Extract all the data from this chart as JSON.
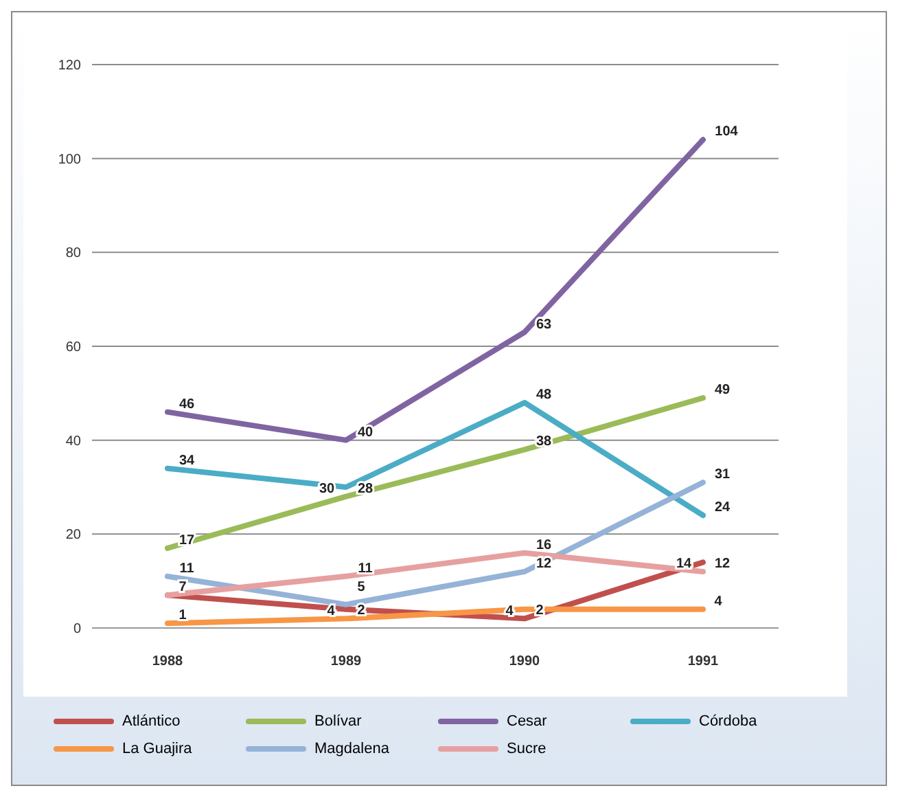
{
  "chart_data": {
    "type": "line",
    "categories": [
      "1988",
      "1989",
      "1990",
      "1991"
    ],
    "series": [
      {
        "name": "Atlántico",
        "color": "#c0504d",
        "values": [
          7,
          4,
          2,
          14
        ],
        "value_labels": [
          "7",
          "4",
          "2",
          "14"
        ]
      },
      {
        "name": "Bolívar",
        "color": "#9bbb59",
        "values": [
          17,
          28,
          38,
          49
        ],
        "value_labels": [
          "17",
          "28",
          "38",
          "49"
        ]
      },
      {
        "name": "Cesar",
        "color": "#8064a2",
        "values": [
          46,
          40,
          63,
          104
        ],
        "value_labels": [
          "46",
          "40",
          "63",
          "104"
        ]
      },
      {
        "name": "Córdoba",
        "color": "#4bacc6",
        "values": [
          34,
          30,
          48,
          24
        ],
        "value_labels": [
          "34",
          "30",
          "48",
          "24"
        ]
      },
      {
        "name": "La Guajira",
        "color": "#f79646",
        "values": [
          1,
          2,
          4,
          4
        ],
        "value_labels": [
          "1",
          "2",
          "4",
          "4"
        ]
      },
      {
        "name": "Magdalena",
        "color": "#95b3d7",
        "values": [
          11,
          5,
          12,
          31
        ],
        "value_labels": [
          "11",
          "5",
          "12",
          "31"
        ]
      },
      {
        "name": "Sucre",
        "color": "#e6a0a0",
        "values": [
          7,
          11,
          16,
          12
        ],
        "value_labels": [
          null,
          "11",
          "16",
          "12"
        ]
      }
    ],
    "ylim": [
      0,
      120
    ],
    "yticks": [
      0,
      20,
      40,
      60,
      80,
      100,
      120
    ],
    "grid": "y",
    "legend": "bottom",
    "marker": "none",
    "line_style": "solid"
  }
}
